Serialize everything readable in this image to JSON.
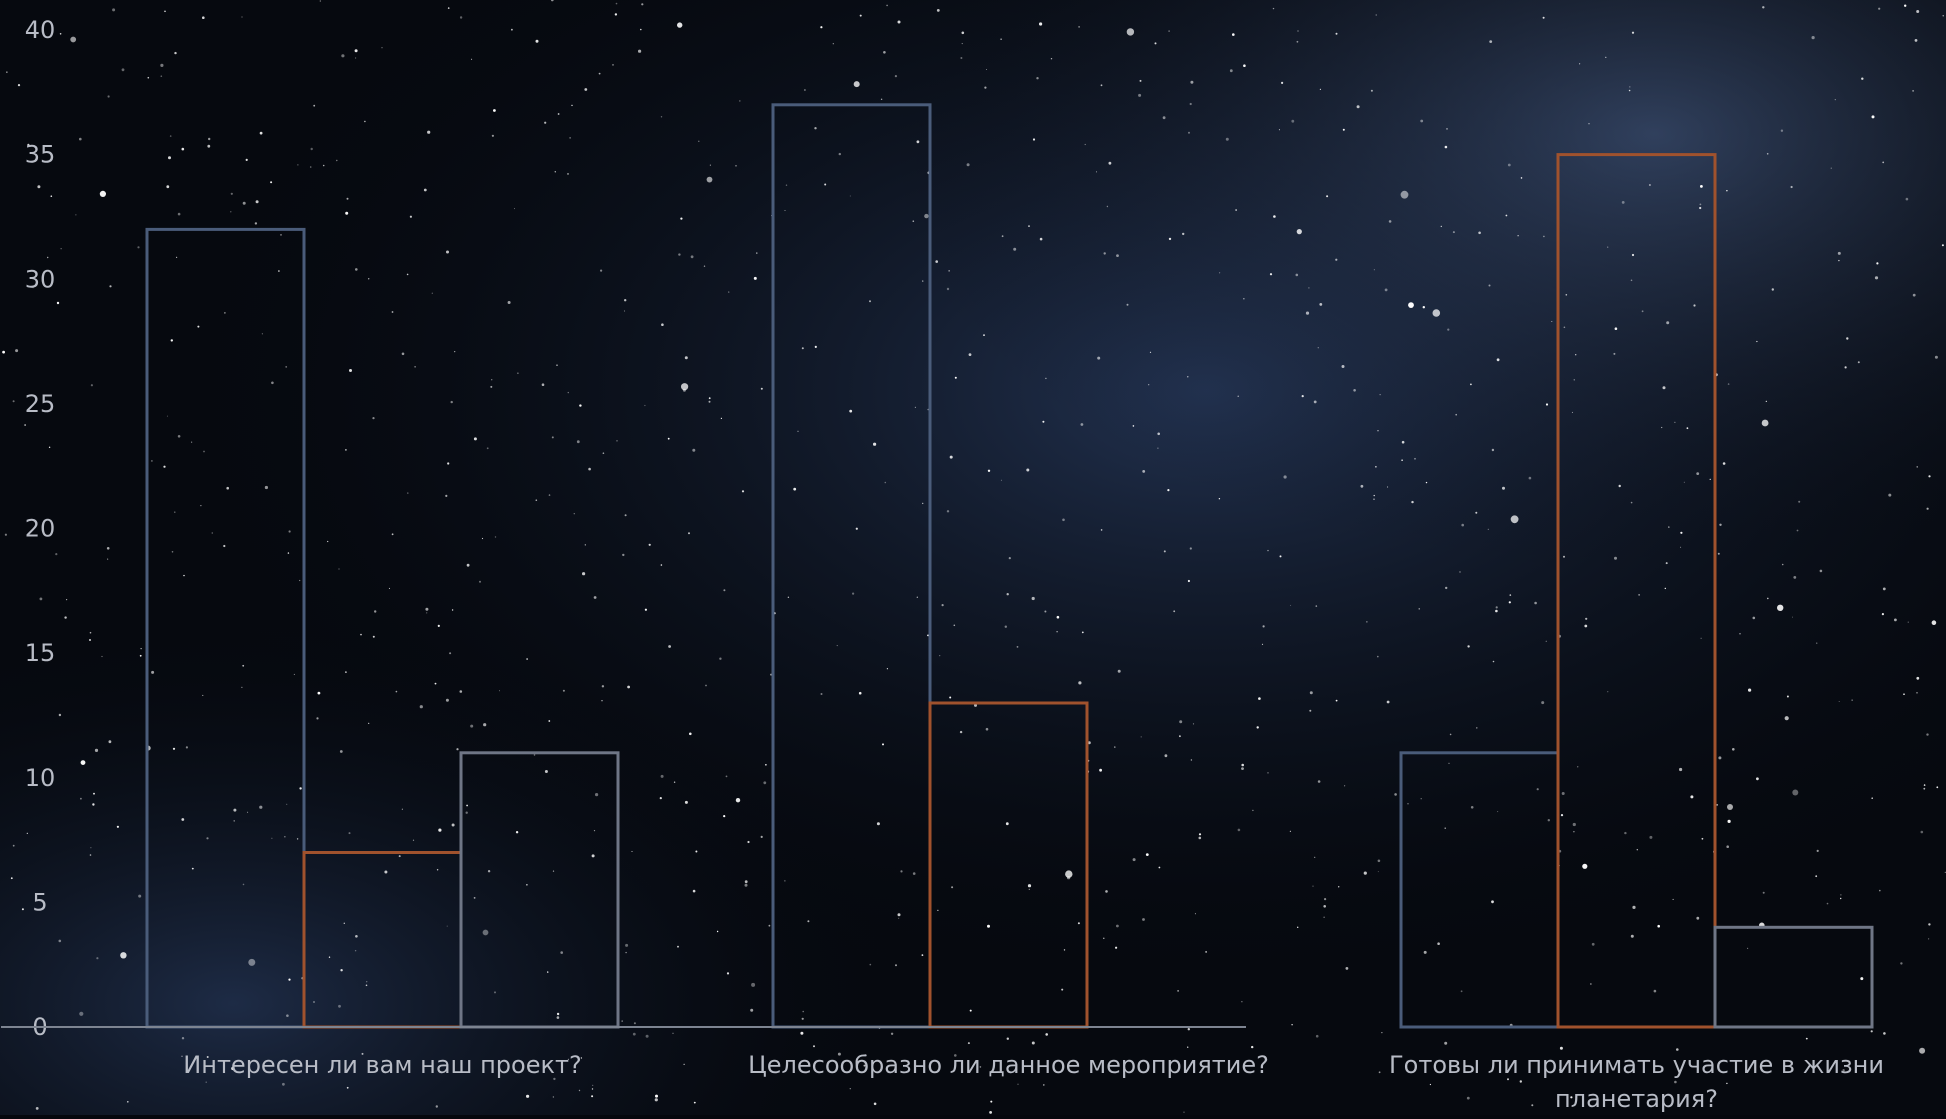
{
  "chart_data": {
    "type": "bar",
    "categories": [
      "Интересен ли вам наш проект?",
      "Целесообразно ли данное мероприятие?",
      "Готовы ли принимать участие в жизни планетария?"
    ],
    "series": [
      {
        "values": [
          32,
          37,
          11
        ]
      },
      {
        "values": [
          7,
          13,
          35
        ]
      },
      {
        "values": [
          11,
          0,
          4
        ]
      }
    ],
    "ylim": [
      0,
      40
    ],
    "yticks": [
      0,
      5,
      10,
      15,
      20,
      25,
      30,
      35,
      40
    ],
    "title": "",
    "xlabel": "",
    "ylabel": "",
    "grid": false,
    "legend": "none"
  },
  "colors": {
    "series": [
      "#4a5c7a",
      "#a0522d",
      "#6f7686"
    ],
    "tick_text": "#b8bcc6",
    "axis_line": "#7d8491",
    "sky_top": "#0b1222",
    "sky_glow": "#3a5588"
  }
}
